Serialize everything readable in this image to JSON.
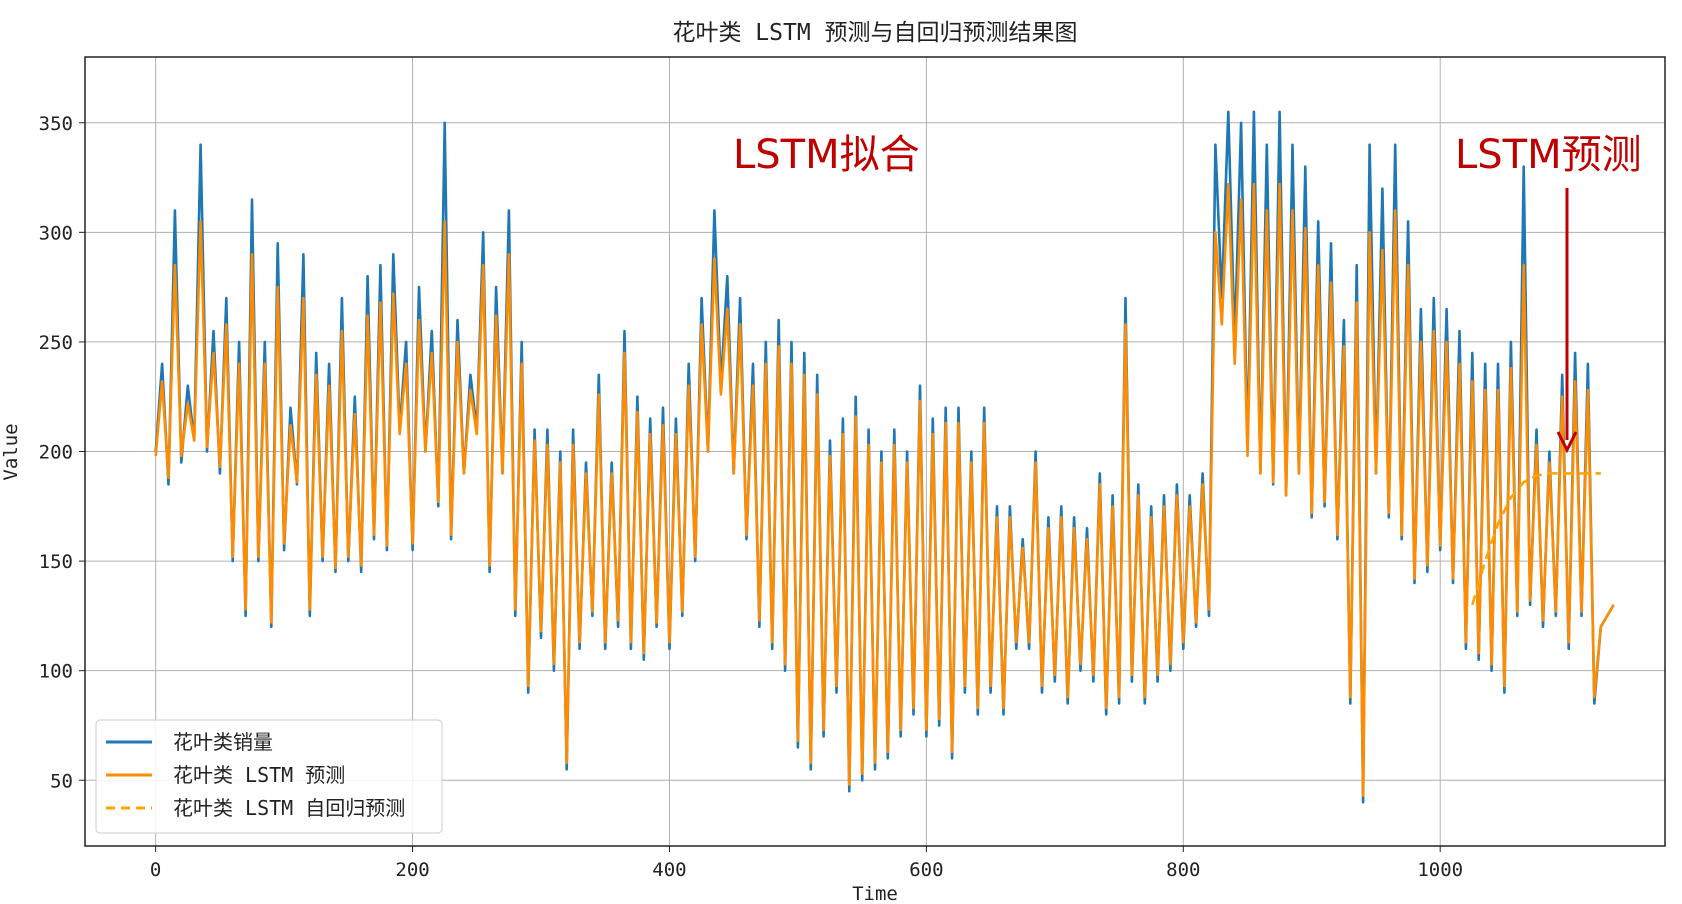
{
  "chart_data": {
    "type": "line",
    "title": "花叶类 LSTM 预测与自回归预测结果图",
    "xlabel": "Time",
    "ylabel": "Value",
    "xlim": [
      -55,
      1175
    ],
    "ylim": [
      20,
      380
    ],
    "xticks": [
      0,
      200,
      400,
      600,
      800,
      1000
    ],
    "yticks": [
      50,
      100,
      150,
      200,
      250,
      300,
      350
    ],
    "grid": true,
    "legend_position": "lower-left",
    "annotations": [
      {
        "text": "LSTM拟合"
      },
      {
        "text": "LSTM预测",
        "arrow_target": [
          1100,
          197
        ]
      }
    ],
    "series": [
      {
        "name": "花叶类销量",
        "color": "#1f77b4",
        "style": "solid",
        "x_start": 0,
        "x_step": 5,
        "values": [
          200,
          240,
          185,
          310,
          195,
          230,
          205,
          340,
          200,
          255,
          190,
          270,
          150,
          250,
          125,
          315,
          150,
          250,
          120,
          295,
          155,
          220,
          185,
          290,
          125,
          245,
          150,
          240,
          145,
          270,
          150,
          225,
          145,
          280,
          160,
          285,
          155,
          290,
          210,
          250,
          155,
          275,
          200,
          255,
          175,
          350,
          160,
          260,
          190,
          235,
          210,
          300,
          145,
          275,
          190,
          310,
          125,
          250,
          90,
          210,
          115,
          210,
          100,
          200,
          55,
          210,
          110,
          195,
          125,
          235,
          110,
          195,
          120,
          255,
          110,
          225,
          105,
          215,
          120,
          220,
          110,
          215,
          125,
          240,
          150,
          270,
          200,
          310,
          230,
          280,
          190,
          270,
          160,
          240,
          120,
          250,
          110,
          260,
          100,
          250,
          65,
          245,
          55,
          235,
          70,
          205,
          90,
          215,
          45,
          225,
          50,
          210,
          55,
          200,
          60,
          210,
          70,
          200,
          80,
          230,
          70,
          215,
          75,
          220,
          60,
          220,
          90,
          200,
          80,
          220,
          90,
          175,
          80,
          175,
          110,
          160,
          110,
          200,
          90,
          170,
          95,
          175,
          85,
          170,
          100,
          165,
          95,
          190,
          80,
          180,
          85,
          270,
          95,
          185,
          85,
          175,
          95,
          180,
          100,
          185,
          110,
          180,
          120,
          190,
          125,
          340,
          270,
          355,
          250,
          350,
          200,
          355,
          190,
          340,
          185,
          355,
          180,
          340,
          190,
          330,
          170,
          305,
          175,
          295,
          160,
          260,
          85,
          285,
          40,
          340,
          190,
          320,
          170,
          340,
          160,
          305,
          140,
          265,
          145,
          270,
          155,
          265,
          140,
          255,
          110,
          245,
          105,
          240,
          100,
          240,
          90,
          250,
          125,
          330,
          130,
          210,
          120,
          200,
          125,
          235,
          110,
          245,
          125,
          240,
          85,
          120,
          125,
          130
        ]
      },
      {
        "name": "花叶类 LSTM 预测",
        "color": "#ff8c00",
        "style": "solid",
        "x_start": 0,
        "x_step": 5,
        "values": [
          198,
          232,
          188,
          285,
          198,
          222,
          205,
          305,
          202,
          245,
          193,
          258,
          152,
          240,
          128,
          290,
          152,
          240,
          122,
          275,
          158,
          212,
          186,
          270,
          128,
          235,
          152,
          230,
          147,
          255,
          152,
          217,
          148,
          262,
          162,
          268,
          157,
          272,
          208,
          240,
          158,
          260,
          200,
          245,
          177,
          305,
          162,
          250,
          190,
          228,
          208,
          285,
          148,
          262,
          190,
          290,
          128,
          240,
          93,
          205,
          118,
          203,
          103,
          195,
          58,
          203,
          113,
          190,
          127,
          226,
          113,
          190,
          123,
          245,
          113,
          218,
          108,
          208,
          122,
          212,
          113,
          208,
          127,
          230,
          152,
          258,
          200,
          288,
          226,
          265,
          190,
          258,
          162,
          230,
          123,
          240,
          113,
          248,
          103,
          240,
          68,
          235,
          58,
          226,
          73,
          198,
          93,
          208,
          48,
          216,
          53,
          203,
          58,
          195,
          63,
          203,
          73,
          195,
          83,
          223,
          73,
          208,
          78,
          213,
          63,
          213,
          93,
          195,
          83,
          213,
          93,
          170,
          83,
          170,
          113,
          156,
          113,
          195,
          93,
          165,
          98,
          170,
          88,
          165,
          103,
          160,
          98,
          185,
          83,
          175,
          88,
          258,
          98,
          180,
          88,
          170,
          98,
          175,
          103,
          180,
          113,
          175,
          122,
          185,
          128,
          300,
          258,
          322,
          240,
          315,
          198,
          322,
          190,
          310,
          186,
          322,
          180,
          310,
          190,
          302,
          172,
          285,
          177,
          277,
          162,
          248,
          88,
          268,
          43,
          300,
          190,
          292,
          172,
          310,
          162,
          285,
          142,
          250,
          148,
          255,
          157,
          250,
          142,
          240,
          113,
          232,
          108,
          228,
          103,
          228,
          93,
          238,
          127,
          285,
          132,
          203,
          123,
          195,
          127,
          225,
          113,
          232,
          127,
          228,
          88,
          120,
          125,
          130
        ]
      },
      {
        "name": "花叶类 LSTM 自回归预测",
        "color": "#ffa500",
        "style": "dashed",
        "x": [
          1025,
          1035,
          1045,
          1055,
          1065,
          1075,
          1085,
          1095,
          1105,
          1115,
          1125
        ],
        "values": [
          130,
          150,
          167,
          179,
          186,
          189,
          190,
          190,
          190,
          190,
          190
        ]
      }
    ]
  }
}
